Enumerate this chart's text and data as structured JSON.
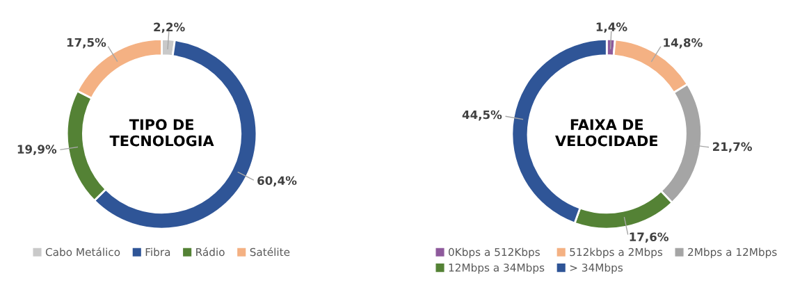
{
  "chart_data": [
    {
      "type": "donut",
      "title": "TIPO DE TECNOLOGIA",
      "categories": [
        "Cabo Metálico",
        "Fibra",
        "Rádio",
        "Satélite"
      ],
      "values": [
        2.2,
        60.4,
        19.9,
        17.5
      ],
      "value_labels": [
        "2,2%",
        "60,4%",
        "19,9%",
        "17,5%"
      ],
      "colors": [
        "#c9c9c9",
        "#2f5597",
        "#548235",
        "#f4b183"
      ],
      "legend": "bottom"
    },
    {
      "type": "donut",
      "title": "FAIXA DE VELOCIDADE",
      "categories": [
        "0Kbps a 512Kbps",
        "512kbps a 2Mbps",
        "2Mbps a 12Mbps",
        "12Mbps a 34Mbps",
        "> 34Mbps"
      ],
      "values": [
        1.4,
        14.8,
        21.7,
        17.6,
        44.5
      ],
      "value_labels": [
        "1,4%",
        "14,8%",
        "21,7%",
        "17,6%",
        "44,5%"
      ],
      "colors": [
        "#8e5a9c",
        "#f4b183",
        "#a5a5a5",
        "#548235",
        "#2f5597"
      ],
      "legend": "bottom"
    }
  ]
}
